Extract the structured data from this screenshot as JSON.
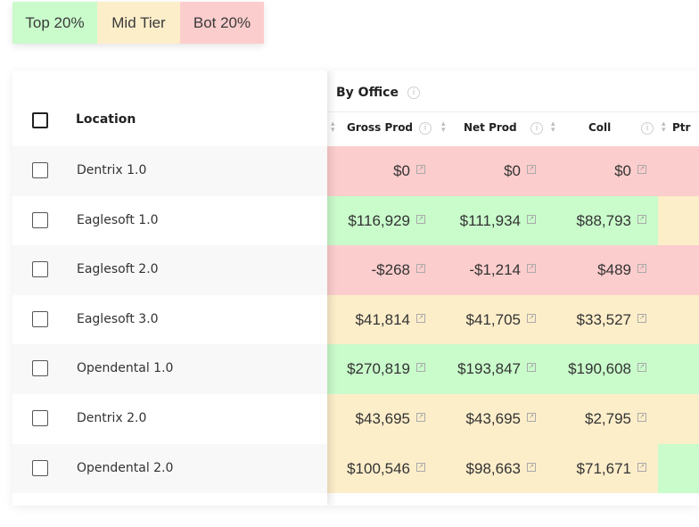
{
  "legend": {
    "top_label": "Top 20%",
    "mid_label": "Mid Tier",
    "bot_label": "Bot 20%",
    "colors": {
      "top": "#c9fbcb",
      "mid": "#fdeeca",
      "bot": "#fccdcd"
    }
  },
  "table": {
    "location_header": "Location",
    "group_header": "By Office",
    "columns": [
      "Gross Prod",
      "Net Prod",
      "Coll",
      "Ptr"
    ],
    "rows": [
      {
        "location": "Dentrix 1.0",
        "values": [
          "$0",
          "$0",
          "$0"
        ],
        "tiers": [
          "bot",
          "bot",
          "bot",
          "bot"
        ]
      },
      {
        "location": "Eaglesoft 1.0",
        "values": [
          "$116,929",
          "$111,934",
          "$88,793"
        ],
        "tiers": [
          "top",
          "top",
          "top",
          "mid"
        ]
      },
      {
        "location": "Eaglesoft 2.0",
        "values": [
          "-$268",
          "-$1,214",
          "$489"
        ],
        "tiers": [
          "bot",
          "bot",
          "bot",
          "bot"
        ]
      },
      {
        "location": "Eaglesoft 3.0",
        "values": [
          "$41,814",
          "$41,705",
          "$33,527"
        ],
        "tiers": [
          "mid",
          "mid",
          "mid",
          "mid"
        ]
      },
      {
        "location": "Opendental 1.0",
        "values": [
          "$270,819",
          "$193,847",
          "$190,608"
        ],
        "tiers": [
          "top",
          "top",
          "top",
          "top"
        ]
      },
      {
        "location": "Dentrix 2.0",
        "values": [
          "$43,695",
          "$43,695",
          "$2,795"
        ],
        "tiers": [
          "mid",
          "mid",
          "mid",
          "mid"
        ]
      },
      {
        "location": "Opendental 2.0",
        "values": [
          "$100,546",
          "$98,663",
          "$71,671"
        ],
        "tiers": [
          "mid",
          "mid",
          "mid",
          "top"
        ]
      }
    ]
  }
}
